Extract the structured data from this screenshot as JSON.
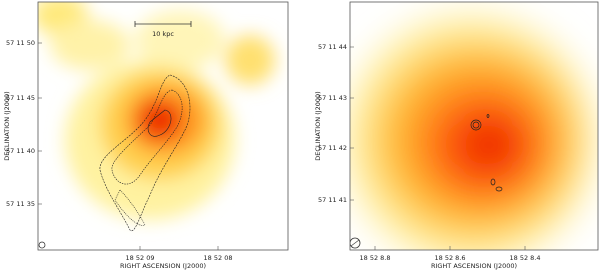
{
  "panels": [
    {
      "x_label": "RIGHT ASCENSION  (J2000)",
      "y_label": "DECLINATION  (J2000)",
      "x_ticks": [
        "18 52 09",
        "18 52 08"
      ],
      "y_ticks": [
        "57 11 50",
        "57 11 45",
        "57 11 40",
        "57 11 35"
      ],
      "scale_label": "10 kpc"
    },
    {
      "x_label": "RIGHT ASCENSION  (J2000)",
      "y_label": "DECLINATION  (J2000)",
      "x_ticks": [
        "18 52 8.8",
        "18 52 8.6",
        "18 52 8.4"
      ],
      "y_ticks": [
        "57 11 44",
        "57 11 43",
        "57 11 42",
        "57 11 41"
      ]
    }
  ]
}
